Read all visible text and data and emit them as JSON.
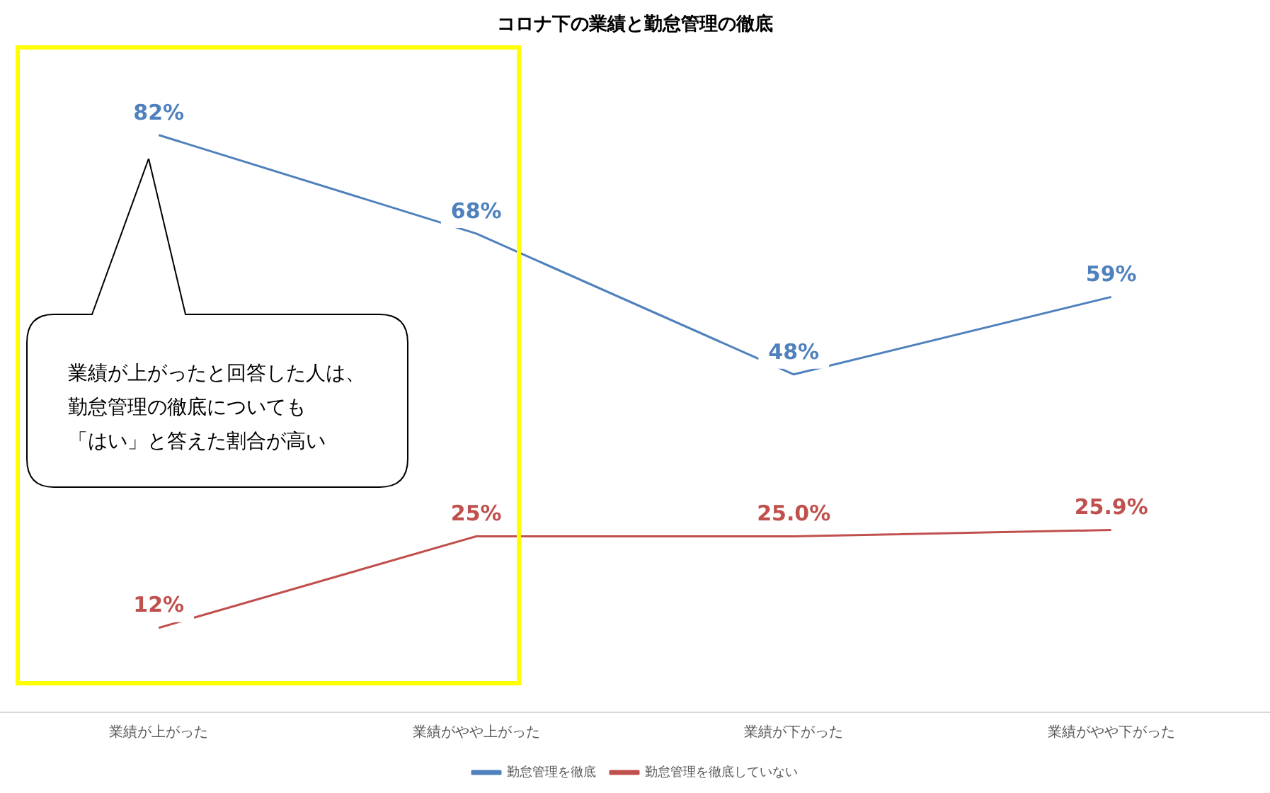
{
  "chart_data": {
    "type": "line",
    "title": "コロナ下の業績と勤怠管理の徹底",
    "categories": [
      "業績が上がった",
      "業績がやや上がった",
      "業績が下がった",
      "業績がやや下がった"
    ],
    "series": [
      {
        "name": "勤怠管理を徹底",
        "color": "#4f81bd",
        "values": [
          82,
          68,
          48,
          59
        ],
        "value_labels": [
          "82%",
          "68%",
          "48%",
          "59%"
        ]
      },
      {
        "name": "勤怠管理を徹底していない",
        "color": "#c0504d",
        "values": [
          12,
          25,
          25.0,
          25.9
        ],
        "value_labels": [
          "12%",
          "25%",
          "25.0%",
          "25.9%"
        ]
      }
    ],
    "tick_labels": "x",
    "grid": false,
    "legend": "bottom",
    "line_style": "solid",
    "data_labels": true,
    "annotations": [
      "業績が上がったと回答した人は、",
      "勤怠管理の徹底についても",
      "「はい」と答えた割合が高い"
    ]
  }
}
